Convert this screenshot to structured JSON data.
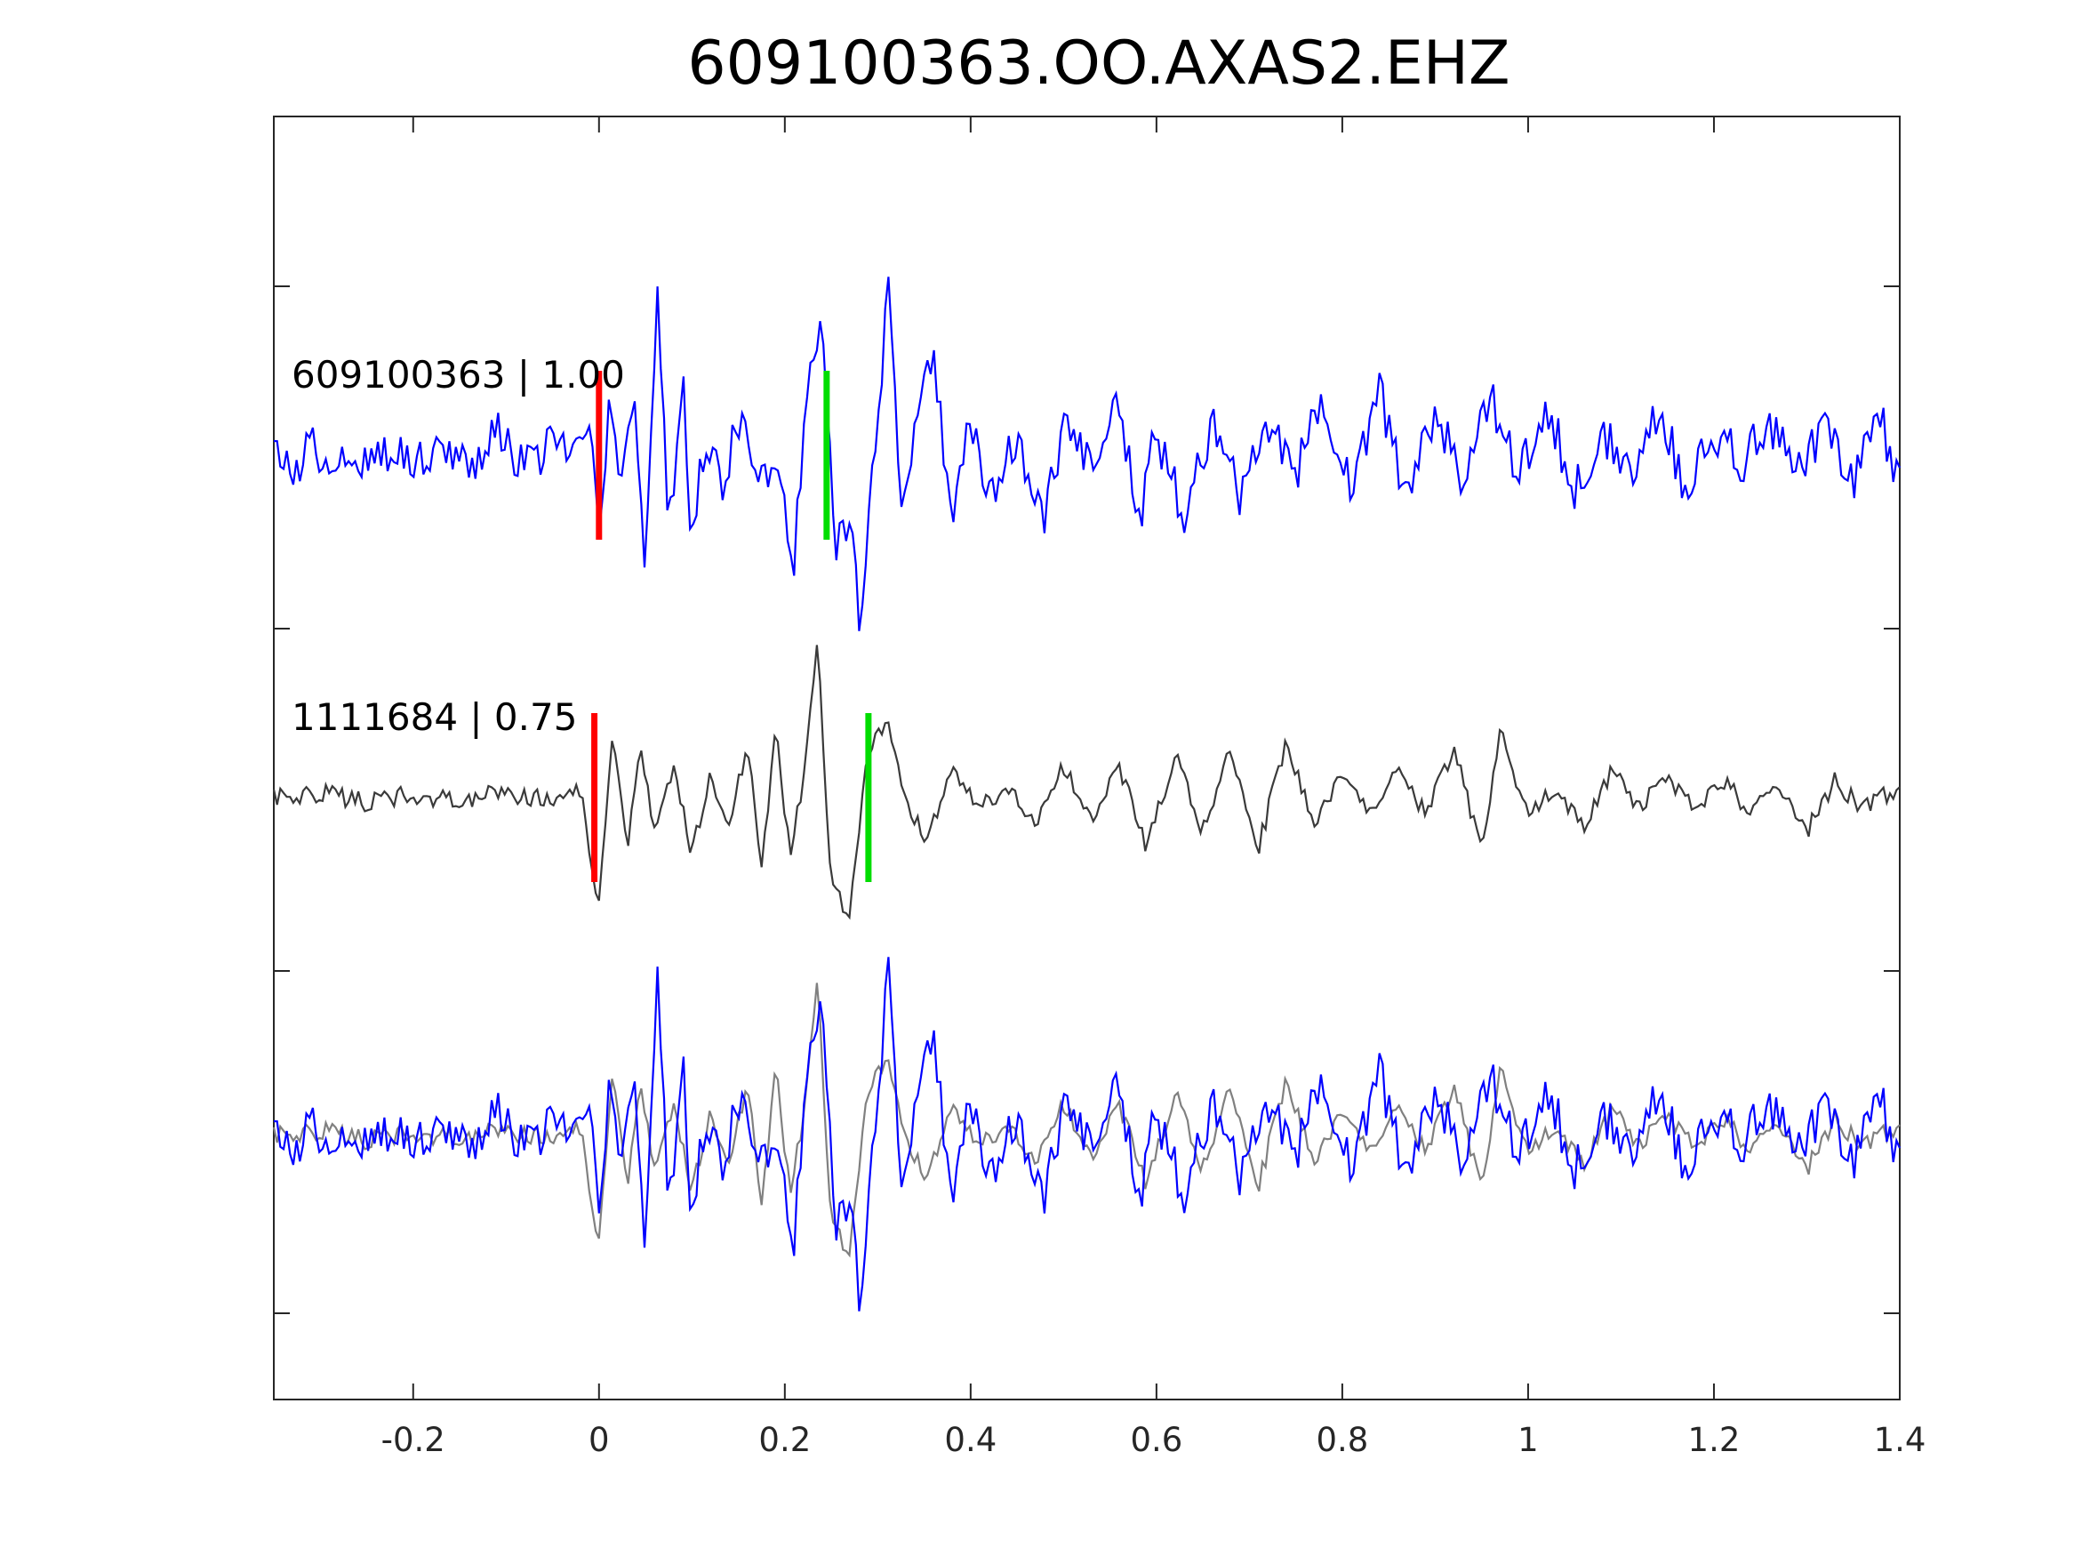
{
  "chart_data": {
    "type": "line",
    "title": "609100363.OO.AXAS2.EHZ",
    "xlabel": "",
    "ylabel": "",
    "xlim": [
      -0.35,
      1.4
    ],
    "xticks": [
      -0.2,
      0,
      0.2,
      0.4,
      0.6,
      0.8,
      1,
      1.2,
      1.4
    ],
    "xtick_labels": [
      "-0.2",
      "0",
      "0.2",
      "0.4",
      "0.6",
      "0.8",
      "1",
      "1.2",
      "1.4"
    ],
    "grid": false,
    "legend": "none",
    "colors": {
      "reference": "#0000ff",
      "match": "#3a3a3a",
      "match_overlay": "#808080",
      "p_pick": "#ff0000",
      "s_pick": "#00dd00",
      "axes": "#262626"
    },
    "traces": [
      {
        "label": "609100363 | 1.00",
        "color": "#0000ff",
        "p_pick_time": 0.0,
        "s_pick_time": 0.245,
        "keypoints": [
          [
            -0.35,
            0.0
          ],
          [
            -0.33,
            -0.12
          ],
          [
            -0.31,
            0.08
          ],
          [
            -0.29,
            -0.06
          ],
          [
            -0.27,
            0.07
          ],
          [
            -0.25,
            -0.09
          ],
          [
            -0.23,
            0.05
          ],
          [
            -0.2,
            -0.04
          ],
          [
            -0.17,
            0.09
          ],
          [
            -0.14,
            -0.07
          ],
          [
            -0.11,
            0.14
          ],
          [
            -0.08,
            -0.1
          ],
          [
            -0.05,
            0.1
          ],
          [
            -0.03,
            -0.07
          ],
          [
            -0.01,
            0.25
          ],
          [
            0.0,
            -0.6
          ],
          [
            0.012,
            0.4
          ],
          [
            0.022,
            -0.3
          ],
          [
            0.038,
            0.45
          ],
          [
            0.05,
            -0.7
          ],
          [
            0.063,
            0.95
          ],
          [
            0.075,
            -0.45
          ],
          [
            0.09,
            0.45
          ],
          [
            0.1,
            -0.55
          ],
          [
            0.115,
            0.15
          ],
          [
            0.13,
            -0.2
          ],
          [
            0.15,
            0.2
          ],
          [
            0.17,
            -0.15
          ],
          [
            0.19,
            0.0
          ],
          [
            0.21,
            -0.65
          ],
          [
            0.225,
            0.55
          ],
          [
            0.24,
            0.9
          ],
          [
            0.255,
            -0.55
          ],
          [
            0.27,
            -0.35
          ],
          [
            0.282,
            -1.1
          ],
          [
            0.3,
            0.25
          ],
          [
            0.312,
            1.05
          ],
          [
            0.325,
            -0.25
          ],
          [
            0.34,
            0.15
          ],
          [
            0.36,
            0.65
          ],
          [
            0.38,
            -0.5
          ],
          [
            0.4,
            0.25
          ],
          [
            0.42,
            -0.25
          ],
          [
            0.45,
            0.1
          ],
          [
            0.48,
            -0.35
          ],
          [
            0.5,
            0.15
          ],
          [
            0.53,
            -0.1
          ],
          [
            0.56,
            0.35
          ],
          [
            0.58,
            -0.45
          ],
          [
            0.6,
            0.15
          ],
          [
            0.63,
            -0.4
          ],
          [
            0.66,
            0.2
          ],
          [
            0.69,
            -0.25
          ],
          [
            0.72,
            0.2
          ],
          [
            0.75,
            -0.1
          ],
          [
            0.78,
            0.35
          ],
          [
            0.81,
            -0.2
          ],
          [
            0.84,
            0.4
          ],
          [
            0.87,
            -0.3
          ],
          [
            0.9,
            0.3
          ],
          [
            0.93,
            -0.15
          ],
          [
            0.96,
            0.35
          ],
          [
            0.99,
            -0.1
          ],
          [
            1.02,
            0.3
          ],
          [
            1.05,
            -0.2
          ],
          [
            1.08,
            0.15
          ],
          [
            1.11,
            -0.1
          ],
          [
            1.14,
            0.3
          ],
          [
            1.17,
            -0.2
          ],
          [
            1.2,
            0.15
          ],
          [
            1.23,
            -0.05
          ],
          [
            1.26,
            0.2
          ],
          [
            1.29,
            -0.1
          ],
          [
            1.32,
            0.2
          ],
          [
            1.35,
            -0.15
          ],
          [
            1.38,
            0.2
          ],
          [
            1.4,
            -0.15
          ]
        ]
      },
      {
        "label": "1111684 | 0.75",
        "color": "#3a3a3a",
        "p_pick_time": -0.005,
        "s_pick_time": 0.29,
        "keypoints": [
          [
            -0.35,
            0.0
          ],
          [
            -0.3,
            0.03
          ],
          [
            -0.25,
            -0.03
          ],
          [
            -0.2,
            0.02
          ],
          [
            -0.15,
            -0.02
          ],
          [
            -0.1,
            0.03
          ],
          [
            -0.05,
            -0.03
          ],
          [
            -0.02,
            0.04
          ],
          [
            0.0,
            -0.65
          ],
          [
            0.015,
            0.45
          ],
          [
            0.03,
            -0.3
          ],
          [
            0.045,
            0.35
          ],
          [
            0.06,
            -0.25
          ],
          [
            0.08,
            0.2
          ],
          [
            0.1,
            -0.35
          ],
          [
            0.12,
            0.15
          ],
          [
            0.14,
            -0.2
          ],
          [
            0.16,
            0.35
          ],
          [
            0.175,
            -0.45
          ],
          [
            0.19,
            0.45
          ],
          [
            0.205,
            -0.35
          ],
          [
            0.22,
            0.1
          ],
          [
            0.235,
            1.0
          ],
          [
            0.25,
            -0.55
          ],
          [
            0.27,
            -0.7
          ],
          [
            0.29,
            0.3
          ],
          [
            0.31,
            0.45
          ],
          [
            0.33,
            0.0
          ],
          [
            0.35,
            -0.25
          ],
          [
            0.38,
            0.15
          ],
          [
            0.41,
            -0.05
          ],
          [
            0.44,
            0.05
          ],
          [
            0.47,
            -0.15
          ],
          [
            0.5,
            0.2
          ],
          [
            0.53,
            -0.15
          ],
          [
            0.56,
            0.2
          ],
          [
            0.59,
            -0.3
          ],
          [
            0.62,
            0.25
          ],
          [
            0.65,
            -0.2
          ],
          [
            0.68,
            0.3
          ],
          [
            0.71,
            -0.3
          ],
          [
            0.74,
            0.35
          ],
          [
            0.77,
            -0.15
          ],
          [
            0.8,
            0.15
          ],
          [
            0.83,
            -0.1
          ],
          [
            0.86,
            0.15
          ],
          [
            0.89,
            -0.1
          ],
          [
            0.92,
            0.3
          ],
          [
            0.95,
            -0.35
          ],
          [
            0.97,
            0.4
          ],
          [
            1.0,
            -0.1
          ],
          [
            1.03,
            0.05
          ],
          [
            1.06,
            -0.2
          ],
          [
            1.09,
            0.15
          ],
          [
            1.12,
            -0.05
          ],
          [
            1.15,
            0.1
          ],
          [
            1.18,
            -0.05
          ],
          [
            1.21,
            0.1
          ],
          [
            1.24,
            -0.1
          ],
          [
            1.27,
            0.1
          ],
          [
            1.3,
            -0.2
          ],
          [
            1.33,
            0.1
          ],
          [
            1.36,
            -0.05
          ],
          [
            1.4,
            0.05
          ]
        ]
      }
    ]
  }
}
